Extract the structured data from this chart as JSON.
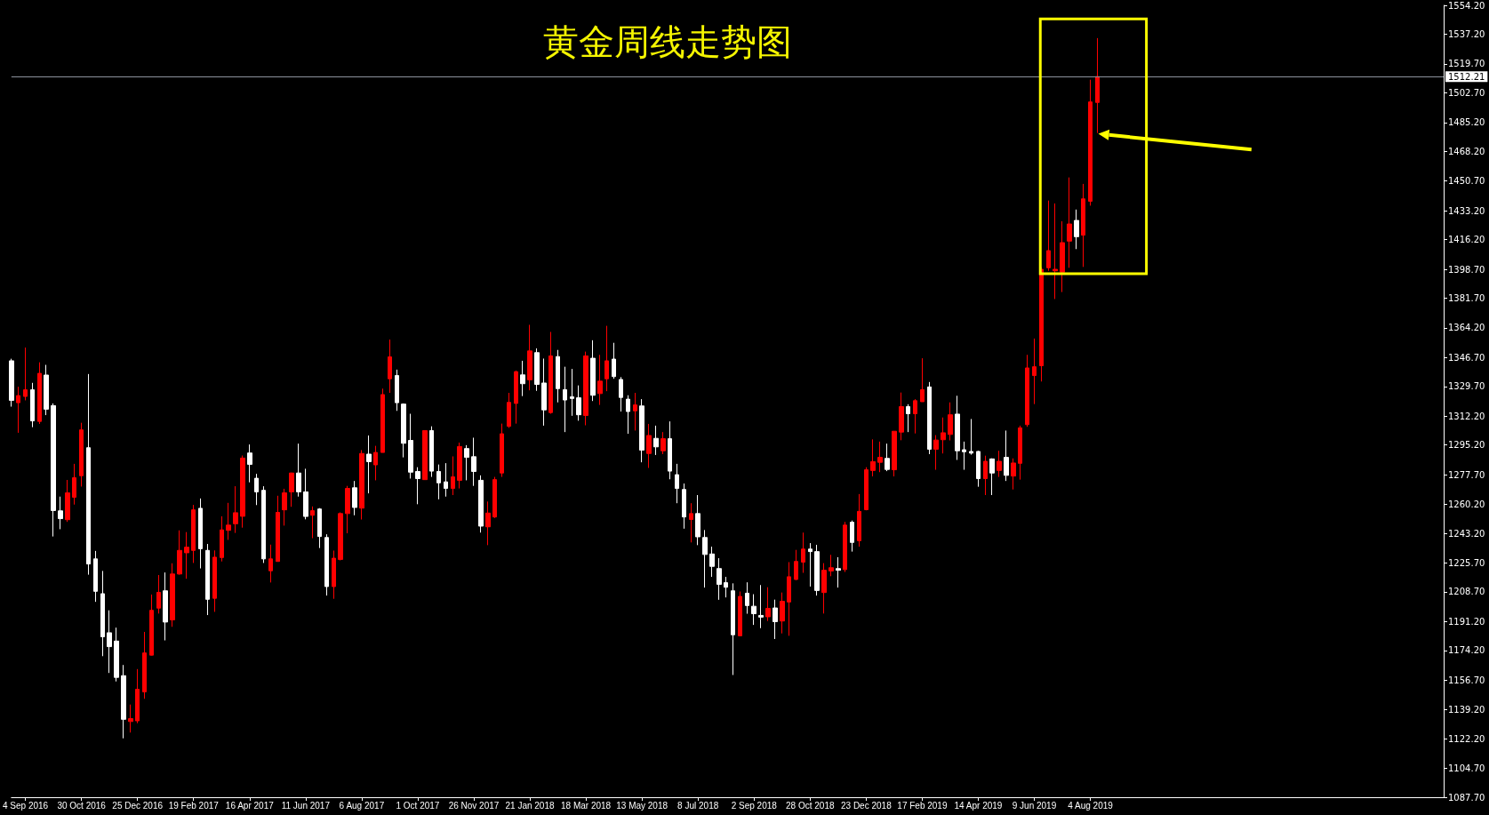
{
  "chart_data": {
    "type": "candlestick",
    "title": "黄金周线走势图",
    "x": [
      "2016-08-21",
      "2016-08-28",
      "2016-09-04",
      "2016-09-11",
      "2016-09-18",
      "2016-09-25",
      "2016-10-02",
      "2016-10-09",
      "2016-10-16",
      "2016-10-23",
      "2016-10-30",
      "2016-11-06",
      "2016-11-13",
      "2016-11-20",
      "2016-11-27",
      "2016-12-04",
      "2016-12-11",
      "2016-12-18",
      "2016-12-25",
      "2017-01-01",
      "2017-01-08",
      "2017-01-15",
      "2017-01-22",
      "2017-01-29",
      "2017-02-05",
      "2017-02-12",
      "2017-02-19",
      "2017-02-26",
      "2017-03-05",
      "2017-03-12",
      "2017-03-19",
      "2017-03-26",
      "2017-04-02",
      "2017-04-09",
      "2017-04-16",
      "2017-04-23",
      "2017-04-30",
      "2017-05-07",
      "2017-05-14",
      "2017-05-21",
      "2017-05-28",
      "2017-06-04",
      "2017-06-11",
      "2017-06-18",
      "2017-06-25",
      "2017-07-02",
      "2017-07-09",
      "2017-07-16",
      "2017-07-23",
      "2017-07-30",
      "2017-08-06",
      "2017-08-13",
      "2017-08-20",
      "2017-08-27",
      "2017-09-03",
      "2017-09-10",
      "2017-09-17",
      "2017-09-24",
      "2017-10-01",
      "2017-10-08",
      "2017-10-15",
      "2017-10-22",
      "2017-10-29",
      "2017-11-05",
      "2017-11-12",
      "2017-11-19",
      "2017-11-26",
      "2017-12-03",
      "2017-12-10",
      "2017-12-17",
      "2017-12-24",
      "2017-12-31",
      "2018-01-07",
      "2018-01-14",
      "2018-01-21",
      "2018-01-28",
      "2018-02-04",
      "2018-02-11",
      "2018-02-18",
      "2018-02-25",
      "2018-03-04",
      "2018-03-11",
      "2018-03-18",
      "2018-03-25",
      "2018-04-01",
      "2018-04-08",
      "2018-04-15",
      "2018-04-22",
      "2018-04-29",
      "2018-05-06",
      "2018-05-13",
      "2018-05-20",
      "2018-05-27",
      "2018-06-03",
      "2018-06-10",
      "2018-06-17",
      "2018-06-24",
      "2018-07-01",
      "2018-07-08",
      "2018-07-15",
      "2018-07-22",
      "2018-07-29",
      "2018-08-05",
      "2018-08-12",
      "2018-08-19",
      "2018-08-26",
      "2018-09-02",
      "2018-09-09",
      "2018-09-16",
      "2018-09-23",
      "2018-09-30",
      "2018-10-07",
      "2018-10-14",
      "2018-10-21",
      "2018-10-28",
      "2018-11-04",
      "2018-11-11",
      "2018-11-18",
      "2018-11-25",
      "2018-12-02",
      "2018-12-09",
      "2018-12-16",
      "2018-12-23",
      "2018-12-30",
      "2019-01-06",
      "2019-01-13",
      "2019-01-20",
      "2019-01-27",
      "2019-02-03",
      "2019-02-10",
      "2019-02-17",
      "2019-02-24",
      "2019-03-03",
      "2019-03-10",
      "2019-03-17",
      "2019-03-24",
      "2019-03-31",
      "2019-04-07",
      "2019-04-14",
      "2019-04-21",
      "2019-04-28",
      "2019-05-05",
      "2019-05-12",
      "2019-05-19",
      "2019-05-26",
      "2019-06-02",
      "2019-06-09",
      "2019-06-16",
      "2019-06-23",
      "2019-06-30",
      "2019-07-07",
      "2019-07-14",
      "2019-07-21",
      "2019-07-28",
      "2019-08-04",
      "2019-08-11"
    ],
    "ohlc": [
      [
        1344.8,
        1346,
        1317.8,
        1321.5
      ],
      [
        1320.1,
        1329.5,
        1302.4,
        1324.3
      ],
      [
        1323.8,
        1352.6,
        1321.5,
        1327.7
      ],
      [
        1327.7,
        1331.8,
        1305.7,
        1309.4
      ],
      [
        1309.1,
        1343.9,
        1307.6,
        1337.4
      ],
      [
        1336.4,
        1342.4,
        1312.8,
        1316.3
      ],
      [
        1318.4,
        1319.7,
        1241.3,
        1256.6
      ],
      [
        1256.4,
        1264.8,
        1245.6,
        1251.8
      ],
      [
        1251.2,
        1274.6,
        1249.9,
        1267.0
      ],
      [
        1264.4,
        1284.1,
        1260.1,
        1275.9
      ],
      [
        1277.1,
        1308.3,
        1270.7,
        1304.1
      ],
      [
        1293.6,
        1337.0,
        1218.8,
        1225.1
      ],
      [
        1228.1,
        1232.8,
        1202.8,
        1209.0
      ],
      [
        1207.6,
        1221.0,
        1170.8,
        1182.2
      ],
      [
        1184.6,
        1197.8,
        1160.9,
        1176.4
      ],
      [
        1179.7,
        1187.6,
        1155.9,
        1158.3
      ],
      [
        1159.3,
        1165.6,
        1122.4,
        1133.6
      ],
      [
        1132.3,
        1142.3,
        1125.8,
        1134.0
      ],
      [
        1132.7,
        1163.2,
        1131.3,
        1151.3
      ],
      [
        1149.8,
        1185.1,
        1145.7,
        1172.7
      ],
      [
        1171.4,
        1207.1,
        1171.2,
        1197.8
      ],
      [
        1199.1,
        1218.6,
        1195.9,
        1208.4
      ],
      [
        1209.3,
        1220.1,
        1180.1,
        1190.9
      ],
      [
        1192.2,
        1225.5,
        1188.1,
        1219.2
      ],
      [
        1219.2,
        1244.9,
        1218.8,
        1233.1
      ],
      [
        1231.7,
        1243.9,
        1216.4,
        1235.0
      ],
      [
        1233.1,
        1259.9,
        1225.7,
        1257.0
      ],
      [
        1257.9,
        1263.7,
        1222.5,
        1234.1
      ],
      [
        1233.1,
        1236.9,
        1195.0,
        1204.3
      ],
      [
        1204.9,
        1233.1,
        1196.9,
        1229.1
      ],
      [
        1228.9,
        1253.2,
        1226.6,
        1245.2
      ],
      [
        1244.9,
        1261.1,
        1239.3,
        1248.0
      ],
      [
        1248.8,
        1270.9,
        1243.4,
        1255.3
      ],
      [
        1253.2,
        1289.0,
        1246.5,
        1287.5
      ],
      [
        1290.5,
        1295.5,
        1273.2,
        1283.8
      ],
      [
        1275.6,
        1278.2,
        1259.8,
        1267.6
      ],
      [
        1268.5,
        1270.9,
        1225.7,
        1228.1
      ],
      [
        1221.1,
        1236.5,
        1214.2,
        1228.1
      ],
      [
        1226.6,
        1265.3,
        1226.6,
        1255.5
      ],
      [
        1257.0,
        1269.4,
        1247.7,
        1267.0
      ],
      [
        1267.6,
        1278.9,
        1258.8,
        1278.7
      ],
      [
        1278.7,
        1296.0,
        1264.8,
        1267.6
      ],
      [
        1267.6,
        1281.2,
        1251.4,
        1253.1
      ],
      [
        1253.8,
        1259.0,
        1240.3,
        1256.5
      ],
      [
        1257.5,
        1258.0,
        1234.5,
        1241.3
      ],
      [
        1240.7,
        1242.6,
        1206.5,
        1211.8
      ],
      [
        1211.8,
        1233.0,
        1204.6,
        1228.5
      ],
      [
        1227.8,
        1255.5,
        1227.2,
        1254.8
      ],
      [
        1254.8,
        1271.1,
        1243.2,
        1269.6
      ],
      [
        1270.0,
        1274.0,
        1253.8,
        1258.4
      ],
      [
        1258.0,
        1292.2,
        1251.3,
        1290.2
      ],
      [
        1289.8,
        1300.8,
        1266.7,
        1285.4
      ],
      [
        1283.5,
        1294.7,
        1274.4,
        1290.8
      ],
      [
        1290.8,
        1328.4,
        1290.8,
        1324.9
      ],
      [
        1334.2,
        1357.3,
        1325.9,
        1347.1
      ],
      [
        1336.1,
        1339.6,
        1315.3,
        1320.1
      ],
      [
        1319.3,
        1319.7,
        1287.9,
        1296.2
      ],
      [
        1297.9,
        1313.6,
        1275.4,
        1279.2
      ],
      [
        1279.6,
        1282.1,
        1260.3,
        1275.4
      ],
      [
        1274.8,
        1303.7,
        1274.8,
        1303.7
      ],
      [
        1303.7,
        1306.2,
        1276.4,
        1279.8
      ],
      [
        1279.6,
        1283.7,
        1263.2,
        1272.9
      ],
      [
        1273.5,
        1284.5,
        1264.8,
        1269.6
      ],
      [
        1269.6,
        1288.5,
        1265.7,
        1276.4
      ],
      [
        1274.4,
        1296.6,
        1269.6,
        1294.3
      ],
      [
        1293.1,
        1295.1,
        1274.4,
        1287.9
      ],
      [
        1288.3,
        1299.5,
        1271.1,
        1279.6
      ],
      [
        1274.4,
        1277.3,
        1243.6,
        1247.4
      ],
      [
        1247.0,
        1261.9,
        1236.2,
        1255.1
      ],
      [
        1252.8,
        1276.4,
        1252.2,
        1274.8
      ],
      [
        1278.7,
        1307.8,
        1276.4,
        1301.8
      ],
      [
        1306.2,
        1325.9,
        1305.3,
        1320.3
      ],
      [
        1319.7,
        1339.0,
        1307.8,
        1338.4
      ],
      [
        1336.5,
        1344.8,
        1324.0,
        1331.3
      ],
      [
        1333.6,
        1366.0,
        1327.4,
        1350.6
      ],
      [
        1349.6,
        1352.1,
        1327.1,
        1330.9
      ],
      [
        1331.7,
        1346.1,
        1306.6,
        1315.9
      ],
      [
        1314.3,
        1361.8,
        1313.6,
        1347.7
      ],
      [
        1347.3,
        1351.2,
        1320.3,
        1328.4
      ],
      [
        1327.8,
        1341.3,
        1302.8,
        1321.7
      ],
      [
        1323.6,
        1340.0,
        1312.4,
        1322.6
      ],
      [
        1323.0,
        1330.3,
        1309.5,
        1313.0
      ],
      [
        1312.6,
        1350.2,
        1306.8,
        1347.7
      ],
      [
        1346.3,
        1356.9,
        1321.1,
        1324.5
      ],
      [
        1325.5,
        1348.3,
        1318.8,
        1332.8
      ],
      [
        1334.2,
        1365.4,
        1326.9,
        1344.8
      ],
      [
        1345.8,
        1355.4,
        1334.2,
        1335.5
      ],
      [
        1333.8,
        1335.2,
        1314.9,
        1323.2
      ],
      [
        1322.2,
        1324.5,
        1301.8,
        1314.9
      ],
      [
        1315.3,
        1325.9,
        1303.7,
        1318.8
      ],
      [
        1318.2,
        1322.2,
        1285.0,
        1292.2
      ],
      [
        1290.2,
        1307.6,
        1281.7,
        1300.8
      ],
      [
        1299.1,
        1306.6,
        1289.3,
        1294.1
      ],
      [
        1291.8,
        1302.8,
        1289.8,
        1298.9
      ],
      [
        1298.9,
        1309.1,
        1275.0,
        1279.8
      ],
      [
        1277.7,
        1284.1,
        1260.9,
        1269.6
      ],
      [
        1269.0,
        1272.5,
        1245.9,
        1252.8
      ],
      [
        1251.3,
        1260.9,
        1237.8,
        1254.8
      ],
      [
        1254.8,
        1265.7,
        1236.2,
        1241.1
      ],
      [
        1240.7,
        1245.1,
        1211.2,
        1230.7
      ],
      [
        1231.0,
        1235.3,
        1217.5,
        1223.7
      ],
      [
        1222.4,
        1228.5,
        1204.0,
        1213.1
      ],
      [
        1214.1,
        1217.5,
        1205.4,
        1211.4
      ],
      [
        1209.3,
        1213.7,
        1159.7,
        1183.4
      ],
      [
        1182.8,
        1208.9,
        1182.8,
        1206.0
      ],
      [
        1207.9,
        1214.3,
        1195.8,
        1200.6
      ],
      [
        1200.2,
        1207.3,
        1189.2,
        1195.8
      ],
      [
        1194.8,
        1212.7,
        1187.3,
        1193.8
      ],
      [
        1194.0,
        1211.4,
        1191.5,
        1198.9
      ],
      [
        1199.2,
        1204.1,
        1180.9,
        1191.1
      ],
      [
        1191.5,
        1208.3,
        1184.2,
        1203.1
      ],
      [
        1202.7,
        1226.2,
        1182.8,
        1217.6
      ],
      [
        1216.0,
        1233.4,
        1215.6,
        1226.6
      ],
      [
        1226.2,
        1243.6,
        1219.9,
        1233.9
      ],
      [
        1233.9,
        1237.4,
        1211.8,
        1232.4
      ],
      [
        1232.4,
        1236.4,
        1206.5,
        1209.5
      ],
      [
        1208.3,
        1225.6,
        1195.9,
        1221.4
      ],
      [
        1221.0,
        1230.5,
        1217.9,
        1222.9
      ],
      [
        1222.4,
        1229.1,
        1211.2,
        1221.4
      ],
      [
        1221.8,
        1249.9,
        1220.4,
        1248.0
      ],
      [
        1249.7,
        1250.7,
        1232.4,
        1237.8
      ],
      [
        1238.8,
        1266.3,
        1235.3,
        1256.1
      ],
      [
        1257.1,
        1282.1,
        1256.7,
        1280.6
      ],
      [
        1280.2,
        1298.5,
        1276.7,
        1285.4
      ],
      [
        1285.0,
        1297.2,
        1279.2,
        1287.9
      ],
      [
        1287.3,
        1296.0,
        1279.8,
        1280.8
      ],
      [
        1280.6,
        1303.3,
        1276.7,
        1303.3
      ],
      [
        1302.8,
        1326.1,
        1298.0,
        1317.8
      ],
      [
        1317.8,
        1319.2,
        1302.8,
        1313.6
      ],
      [
        1313.6,
        1322.2,
        1302.0,
        1321.3
      ],
      [
        1320.7,
        1346.3,
        1320.7,
        1327.8
      ],
      [
        1329.4,
        1332.3,
        1289.8,
        1292.7
      ],
      [
        1292.7,
        1301.0,
        1280.6,
        1298.1
      ],
      [
        1298.3,
        1311.4,
        1290.2,
        1302.4
      ],
      [
        1301.4,
        1320.3,
        1297.9,
        1313.0
      ],
      [
        1313.4,
        1324.2,
        1286.4,
        1291.8
      ],
      [
        1292.4,
        1297.2,
        1280.6,
        1291.2
      ],
      [
        1291.4,
        1310.5,
        1289.5,
        1290.4
      ],
      [
        1291.4,
        1291.8,
        1270.6,
        1275.4
      ],
      [
        1275.4,
        1288.9,
        1265.7,
        1285.6
      ],
      [
        1287.0,
        1287.3,
        1265.7,
        1278.7
      ],
      [
        1280.2,
        1291.8,
        1276.4,
        1285.6
      ],
      [
        1287.9,
        1303.7,
        1274.0,
        1277.3
      ],
      [
        1276.9,
        1287.3,
        1269.0,
        1284.6
      ],
      [
        1284.4,
        1306.6,
        1274.8,
        1305.3
      ],
      [
        1307.2,
        1348.3,
        1305.9,
        1340.6
      ],
      [
        1336.1,
        1357.9,
        1319.3,
        1341.3
      ],
      [
        1341.9,
        1400.0,
        1332.6,
        1398.7
      ],
      [
        1399.6,
        1439.2,
        1397.8,
        1409.7
      ],
      [
        1397.8,
        1437.5,
        1381.2,
        1398.7
      ],
      [
        1397.0,
        1427.0,
        1385.3,
        1414.4
      ],
      [
        1415.3,
        1452.8,
        1399.6,
        1425.4
      ],
      [
        1427.5,
        1433.9,
        1410.6,
        1417.9
      ],
      [
        1418.8,
        1449.0,
        1400.1,
        1440.2
      ],
      [
        1438.8,
        1510.4,
        1436.2,
        1497.3
      ],
      [
        1497.0,
        1534.9,
        1479.0,
        1512.21
      ]
    ],
    "colors": [
      "#ffffff",
      "#ff0000",
      "#ff0000",
      "#ffffff",
      "#ff0000",
      "#ffffff",
      "#ffffff",
      "#ffffff",
      "#ff0000",
      "#ff0000",
      "#ff0000",
      "#ffffff",
      "#ffffff",
      "#ffffff",
      "#ffffff",
      "#ffffff",
      "#ffffff",
      "#ff0000",
      "#ff0000",
      "#ff0000",
      "#ff0000",
      "#ff0000",
      "#ffffff",
      "#ff0000",
      "#ff0000",
      "#ff0000",
      "#ff0000",
      "#ffffff",
      "#ffffff",
      "#ff0000",
      "#ff0000",
      "#ff0000",
      "#ff0000",
      "#ff0000",
      "#ffffff",
      "#ffffff",
      "#ffffff",
      "#ff0000",
      "#ff0000",
      "#ff0000",
      "#ff0000",
      "#ffffff",
      "#ffffff",
      "#ff0000",
      "#ffffff",
      "#ffffff",
      "#ff0000",
      "#ff0000",
      "#ff0000",
      "#ffffff",
      "#ff0000",
      "#ffffff",
      "#ff0000",
      "#ff0000",
      "#ff0000",
      "#ffffff",
      "#ffffff",
      "#ffffff",
      "#ffffff",
      "#ff0000",
      "#ffffff",
      "#ffffff",
      "#ffffff",
      "#ff0000",
      "#ff0000",
      "#ffffff",
      "#ffffff",
      "#ffffff",
      "#ff0000",
      "#ff0000",
      "#ff0000",
      "#ff0000",
      "#ff0000",
      "#ffffff",
      "#ff0000",
      "#ffffff",
      "#ffffff",
      "#ff0000",
      "#ffffff",
      "#ffffff",
      "#ffffff",
      "#ffffff",
      "#ff0000",
      "#ffffff",
      "#ff0000",
      "#ff0000",
      "#ffffff",
      "#ffffff",
      "#ffffff",
      "#ff0000",
      "#ffffff",
      "#ff0000",
      "#ffffff",
      "#ff0000",
      "#ffffff",
      "#ffffff",
      "#ffffff",
      "#ff0000",
      "#ffffff",
      "#ffffff",
      "#ffffff",
      "#ffffff",
      "#ffffff",
      "#ffffff",
      "#ff0000",
      "#ffffff",
      "#ffffff",
      "#ffffff",
      "#ff0000",
      "#ffffff",
      "#ff0000",
      "#ff0000",
      "#ff0000",
      "#ff0000",
      "#ffffff",
      "#ffffff",
      "#ff0000",
      "#ff0000",
      "#ffffff",
      "#ff0000",
      "#ffffff",
      "#ff0000",
      "#ff0000",
      "#ff0000",
      "#ff0000",
      "#ffffff",
      "#ff0000",
      "#ff0000",
      "#ffffff",
      "#ff0000",
      "#ff0000",
      "#ffffff",
      "#ff0000",
      "#ff0000",
      "#ff0000",
      "#ffffff",
      "#ffffff",
      "#ffffff",
      "#ffffff",
      "#ff0000",
      "#ffffff",
      "#ff0000",
      "#ffffff",
      "#ff0000",
      "#ff0000",
      "#ff0000",
      "#ff0000",
      "#ff0000",
      "#ff0000",
      "#ff0000",
      "#ff0000",
      "#ff0000",
      "#ffffff",
      "#ff0000",
      "#ff0000",
      "#ff0000"
    ],
    "xlim": [
      "2016-08-21",
      "2020-07-22"
    ],
    "xticks": [
      {
        "value": "2016-09-04",
        "label": "4 Sep 2016"
      },
      {
        "value": "2016-10-30",
        "label": "30 Oct 2016"
      },
      {
        "value": "2016-12-25",
        "label": "25 Dec 2016"
      },
      {
        "value": "2017-02-19",
        "label": "19 Feb 2017"
      },
      {
        "value": "2017-04-16",
        "label": "16 Apr 2017"
      },
      {
        "value": "2017-06-11",
        "label": "11 Jun 2017"
      },
      {
        "value": "2017-08-06",
        "label": "6 Aug 2017"
      },
      {
        "value": "2017-10-01",
        "label": "1 Oct 2017"
      },
      {
        "value": "2017-11-26",
        "label": "26 Nov 2017"
      },
      {
        "value": "2018-01-21",
        "label": "21 Jan 2018"
      },
      {
        "value": "2018-03-18",
        "label": "18 Mar 2018"
      },
      {
        "value": "2018-05-13",
        "label": "13 May 2018"
      },
      {
        "value": "2018-07-08",
        "label": "8 Jul 2018"
      },
      {
        "value": "2018-09-02",
        "label": "2 Sep 2018"
      },
      {
        "value": "2018-10-28",
        "label": "28 Oct 2018"
      },
      {
        "value": "2018-12-23",
        "label": "23 Dec 2018"
      },
      {
        "value": "2019-02-17",
        "label": "17 Feb 2019"
      },
      {
        "value": "2019-04-14",
        "label": "14 Apr 2019"
      },
      {
        "value": "2019-06-09",
        "label": "9 Jun 2019"
      },
      {
        "value": "2019-08-04",
        "label": "4 Aug 2019"
      }
    ],
    "ylim": [
      1087.7,
      1554.2
    ],
    "yticks": [
      {
        "value": 1087.7,
        "label": "1087.70"
      },
      {
        "value": 1104.7,
        "label": "1104.70"
      },
      {
        "value": 1122.2,
        "label": "1122.20"
      },
      {
        "value": 1139.2,
        "label": "1139.20"
      },
      {
        "value": 1156.7,
        "label": "1156.70"
      },
      {
        "value": 1174.2,
        "label": "1174.20"
      },
      {
        "value": 1191.2,
        "label": "1191.20"
      },
      {
        "value": 1208.7,
        "label": "1208.70"
      },
      {
        "value": 1225.7,
        "label": "1225.70"
      },
      {
        "value": 1243.2,
        "label": "1243.20"
      },
      {
        "value": 1260.2,
        "label": "1260.20"
      },
      {
        "value": 1277.7,
        "label": "1277.70"
      },
      {
        "value": 1295.2,
        "label": "1295.20"
      },
      {
        "value": 1312.2,
        "label": "1312.20"
      },
      {
        "value": 1329.7,
        "label": "1329.70"
      },
      {
        "value": 1346.7,
        "label": "1346.70"
      },
      {
        "value": 1364.2,
        "label": "1364.20"
      },
      {
        "value": 1381.7,
        "label": "1381.70"
      },
      {
        "value": 1398.7,
        "label": "1398.70"
      },
      {
        "value": 1416.2,
        "label": "1416.20"
      },
      {
        "value": 1433.2,
        "label": "1433.20"
      },
      {
        "value": 1450.7,
        "label": "1450.70"
      },
      {
        "value": 1468.2,
        "label": "1468.20"
      },
      {
        "value": 1485.2,
        "label": "1485.20"
      },
      {
        "value": 1502.7,
        "label": "1502.70"
      },
      {
        "value": 1519.7,
        "label": "1519.70"
      },
      {
        "value": 1537.2,
        "label": "1537.20"
      },
      {
        "value": 1554.2,
        "label": "1554.20"
      }
    ],
    "ref_lines": [
      {
        "axis": "y",
        "value": 1512.21,
        "label": "1512.21",
        "color": "#8c929c"
      }
    ]
  }
}
